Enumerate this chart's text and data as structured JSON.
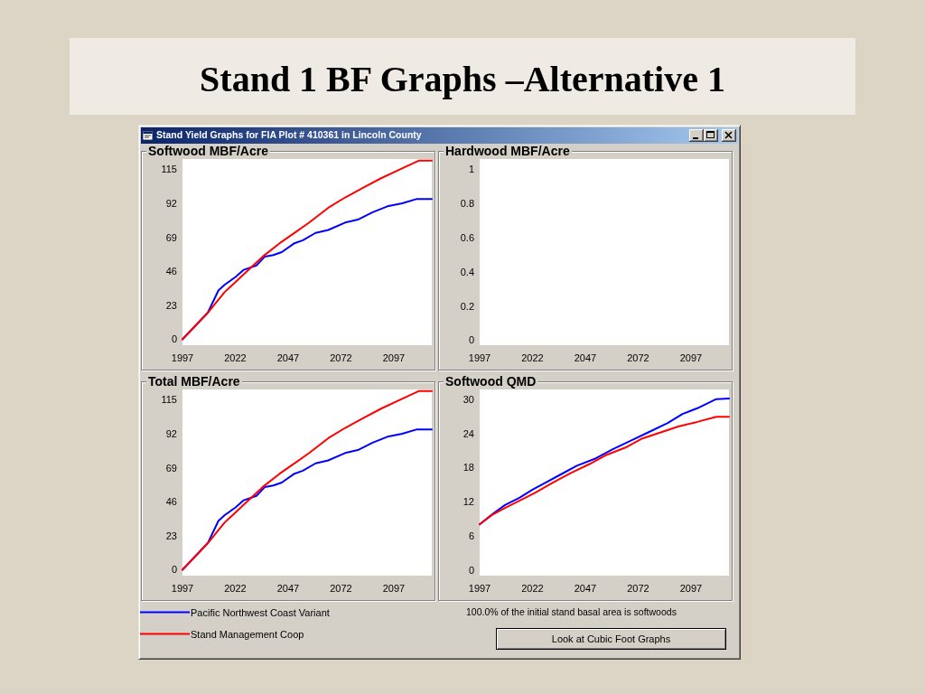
{
  "chart_data": [
    {
      "type": "other",
      "title": "Stand 1 BF Graphs –Alternative 1",
      "subtitle": "Stand Yield Graphs for FIA Plot # 410361 in Lincoln County",
      "annotations": [
        "100.0% of the initial stand basal area is softwoods",
        "Look at Cubic Foot Graphs"
      ]
    },
    {
      "type": "line",
      "title": "Softwood MBF/Acre",
      "series": [
        {
          "color": "#0000ff",
          "x": [
            1997,
            2003,
            2009,
            2014,
            2017,
            2022,
            2026,
            2032,
            2036,
            2040,
            2044,
            2050,
            2054,
            2060,
            2066,
            2074,
            2080,
            2087,
            2094,
            2101,
            2108,
            2115
          ],
          "values": [
            0,
            9,
            18,
            33,
            37,
            42,
            47,
            50,
            56,
            57,
            59,
            65,
            67,
            72,
            74,
            79,
            81,
            86,
            90,
            92,
            95,
            95
          ]
        },
        {
          "color": "#ff0000",
          "x": [
            1997,
            2009,
            2017,
            2026,
            2035,
            2043,
            2051,
            2057,
            2066,
            2074,
            2083,
            2091,
            2100,
            2109,
            2115
          ],
          "values": [
            0,
            18,
            32,
            44,
            56,
            65,
            73,
            79,
            89,
            96,
            103,
            109,
            115,
            121,
            121
          ]
        }
      ],
      "xlim": [
        1997,
        2115
      ],
      "xticks": [
        1997,
        2022,
        2047,
        2072,
        2097
      ],
      "ylim": [
        -4,
        122
      ],
      "yticks": [
        0,
        23,
        46,
        69,
        92,
        115
      ]
    },
    {
      "type": "line",
      "title": "Hardwood MBF/Acre",
      "xlim": [
        1997,
        2115
      ],
      "xticks": [
        1997,
        2022,
        2047,
        2072,
        2097
      ],
      "ylim": [
        -0.03,
        1.06
      ],
      "yticks": [
        0,
        0.2,
        0.4,
        0.6,
        0.8,
        1
      ]
    },
    {
      "type": "line",
      "title": "Total MBF/Acre",
      "series": [
        {
          "name": "Pacific Northwest Coast Variant",
          "color": "#0000ff",
          "x": [
            1997,
            2003,
            2009,
            2014,
            2017,
            2022,
            2026,
            2032,
            2036,
            2040,
            2044,
            2050,
            2054,
            2060,
            2066,
            2074,
            2080,
            2087,
            2094,
            2101,
            2108,
            2115
          ],
          "values": [
            0,
            9,
            18,
            33,
            37,
            42,
            47,
            50,
            56,
            57,
            59,
            65,
            67,
            72,
            74,
            79,
            81,
            86,
            90,
            92,
            95,
            95
          ]
        },
        {
          "name": "Stand Management Coop",
          "color": "#ff0000",
          "x": [
            1997,
            2009,
            2017,
            2026,
            2035,
            2043,
            2051,
            2057,
            2066,
            2074,
            2083,
            2091,
            2100,
            2109,
            2115
          ],
          "values": [
            0,
            18,
            32,
            44,
            56,
            65,
            73,
            79,
            89,
            96,
            103,
            109,
            115,
            121,
            121
          ]
        }
      ],
      "xlim": [
        1997,
        2115
      ],
      "xticks": [
        1997,
        2022,
        2047,
        2072,
        2097
      ],
      "ylim": [
        -4,
        122
      ],
      "yticks": [
        0,
        23,
        46,
        69,
        92,
        115
      ],
      "legend": "bottom"
    },
    {
      "type": "line",
      "title": "Softwood QMD",
      "series": [
        {
          "color": "#0000ff",
          "x": [
            1997,
            2003,
            2009,
            2016,
            2022,
            2027,
            2035,
            2043,
            2052,
            2060,
            2069,
            2077,
            2086,
            2093,
            2100,
            2109,
            2115
          ],
          "values": [
            8.0,
            9.8,
            11.4,
            12.7,
            14.1,
            15.1,
            16.7,
            18.3,
            19.6,
            21.2,
            22.8,
            24.2,
            25.8,
            27.4,
            28.4,
            30.0,
            30.1
          ]
        },
        {
          "color": "#ff0000",
          "x": [
            1997,
            2003,
            2009,
            2016,
            2023,
            2032,
            2040,
            2049,
            2057,
            2066,
            2074,
            2083,
            2091,
            2100,
            2109,
            2115
          ],
          "values": [
            8.0,
            9.7,
            10.9,
            12.2,
            13.5,
            15.4,
            17.0,
            18.6,
            20.2,
            21.5,
            23.1,
            24.2,
            25.2,
            26.0,
            26.9,
            26.9
          ]
        }
      ],
      "xlim": [
        1997,
        2115
      ],
      "xticks": [
        1997,
        2022,
        2047,
        2072,
        2097
      ],
      "ylim": [
        -1,
        31.7
      ],
      "yticks": [
        0,
        6,
        12,
        18,
        24,
        30
      ]
    }
  ]
}
